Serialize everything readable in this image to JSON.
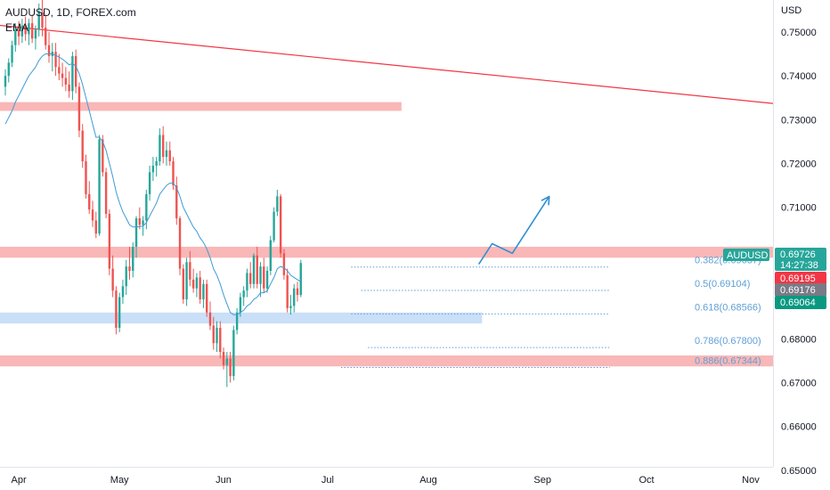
{
  "header": {
    "symbol": "AUDUSD, 1D, FOREX.com",
    "indicator": "EMA"
  },
  "axis": {
    "currency": "USD"
  },
  "price_tags": {
    "symbol": "AUDUSD",
    "last": "0.69726",
    "countdown": "14:27:38",
    "red": "0.69195",
    "gray": "0.69176",
    "green": "0.69064"
  },
  "colors": {
    "bull": "#26a69a",
    "bear": "#ef5350",
    "ema": "#3d9bd6",
    "zone_red": "#f7a5a5",
    "zone_blue": "#b8d4f5",
    "trend": "#f23645",
    "arrow": "#2f8fd3",
    "fib": "#5f9fd6"
  },
  "chart_data": {
    "type": "candlestick",
    "title": "AUDUSD, 1D, FOREX.com",
    "ylabel": "USD",
    "ylim": [
      0.6455,
      0.7573
    ],
    "y_ticks": [
      0.75,
      0.74,
      0.73,
      0.72,
      0.71,
      0.7,
      0.69,
      0.68,
      0.67,
      0.66,
      0.65
    ],
    "y_tick_labels": [
      "0.75000",
      "0.74000",
      "0.73000",
      "0.72000",
      "0.71000",
      "0.70000",
      "0.69000",
      "0.68000",
      "0.67000",
      "0.66000",
      "0.65000"
    ],
    "x_labels": [
      "Apr",
      "May",
      "Jun",
      "Jul",
      "Aug",
      "Sep",
      "Oct",
      "Nov"
    ],
    "x_label_index": [
      4,
      34,
      65,
      96,
      126,
      160,
      191,
      222
    ],
    "candles": [
      [
        0.7375,
        0.7415,
        0.7355,
        0.74
      ],
      [
        0.74,
        0.744,
        0.7385,
        0.743
      ],
      [
        0.743,
        0.748,
        0.742,
        0.747
      ],
      [
        0.747,
        0.752,
        0.7455,
        0.7505
      ],
      [
        0.7505,
        0.7525,
        0.747,
        0.749
      ],
      [
        0.749,
        0.753,
        0.7475,
        0.7515
      ],
      [
        0.7515,
        0.7535,
        0.748,
        0.7495
      ],
      [
        0.7495,
        0.753,
        0.747,
        0.752
      ],
      [
        0.752,
        0.754,
        0.7475,
        0.7485
      ],
      [
        0.7485,
        0.7515,
        0.746,
        0.7505
      ],
      [
        0.7505,
        0.7565,
        0.749,
        0.7545
      ],
      [
        0.7545,
        0.7575,
        0.749,
        0.751
      ],
      [
        0.751,
        0.754,
        0.746,
        0.747
      ],
      [
        0.747,
        0.75,
        0.743,
        0.7445
      ],
      [
        0.7445,
        0.7475,
        0.741,
        0.7455
      ],
      [
        0.7455,
        0.7475,
        0.74,
        0.742
      ],
      [
        0.742,
        0.745,
        0.739,
        0.7405
      ],
      [
        0.7405,
        0.743,
        0.7375,
        0.7395
      ],
      [
        0.7395,
        0.742,
        0.7365,
        0.738
      ],
      [
        0.738,
        0.741,
        0.735,
        0.7365
      ],
      [
        0.7365,
        0.7455,
        0.7345,
        0.7445
      ],
      [
        0.7445,
        0.746,
        0.736,
        0.7375
      ],
      [
        0.7375,
        0.7385,
        0.726,
        0.7275
      ],
      [
        0.7275,
        0.729,
        0.719,
        0.7205
      ],
      [
        0.7205,
        0.722,
        0.712,
        0.713
      ],
      [
        0.713,
        0.716,
        0.7085,
        0.7095
      ],
      [
        0.7095,
        0.7115,
        0.7055,
        0.707
      ],
      [
        0.707,
        0.709,
        0.703,
        0.704
      ],
      [
        0.704,
        0.7265,
        0.7035,
        0.7255
      ],
      [
        0.7255,
        0.7265,
        0.717,
        0.718
      ],
      [
        0.718,
        0.719,
        0.7075,
        0.7085
      ],
      [
        0.7085,
        0.7095,
        0.6945,
        0.696
      ],
      [
        0.696,
        0.699,
        0.6895,
        0.691
      ],
      [
        0.691,
        0.692,
        0.681,
        0.6825
      ],
      [
        0.6825,
        0.6905,
        0.6815,
        0.6895
      ],
      [
        0.6895,
        0.6935,
        0.688,
        0.692
      ],
      [
        0.692,
        0.698,
        0.69,
        0.6965
      ],
      [
        0.6965,
        0.701,
        0.6935,
        0.6955
      ],
      [
        0.6955,
        0.702,
        0.694,
        0.701
      ],
      [
        0.701,
        0.708,
        0.6985,
        0.7075
      ],
      [
        0.7075,
        0.71,
        0.705,
        0.706
      ],
      [
        0.706,
        0.708,
        0.7035,
        0.707
      ],
      [
        0.707,
        0.714,
        0.705,
        0.713
      ],
      [
        0.713,
        0.7195,
        0.7115,
        0.718
      ],
      [
        0.718,
        0.7215,
        0.716,
        0.7195
      ],
      [
        0.7195,
        0.7215,
        0.717,
        0.7205
      ],
      [
        0.7205,
        0.728,
        0.7195,
        0.7265
      ],
      [
        0.7265,
        0.7285,
        0.72,
        0.7215
      ],
      [
        0.7215,
        0.725,
        0.7195,
        0.723
      ],
      [
        0.723,
        0.725,
        0.7195,
        0.7205
      ],
      [
        0.7205,
        0.7215,
        0.714,
        0.715
      ],
      [
        0.715,
        0.717,
        0.706,
        0.7075
      ],
      [
        0.7075,
        0.708,
        0.6945,
        0.696
      ],
      [
        0.696,
        0.697,
        0.688,
        0.689
      ],
      [
        0.689,
        0.6985,
        0.6875,
        0.6975
      ],
      [
        0.6975,
        0.7,
        0.692,
        0.6935
      ],
      [
        0.6935,
        0.696,
        0.6905,
        0.6915
      ],
      [
        0.6915,
        0.695,
        0.6895,
        0.694
      ],
      [
        0.694,
        0.6955,
        0.688,
        0.689
      ],
      [
        0.689,
        0.6935,
        0.687,
        0.6925
      ],
      [
        0.6925,
        0.6935,
        0.685,
        0.686
      ],
      [
        0.686,
        0.6885,
        0.682,
        0.683
      ],
      [
        0.683,
        0.685,
        0.6775,
        0.679
      ],
      [
        0.679,
        0.684,
        0.677,
        0.6825
      ],
      [
        0.6825,
        0.684,
        0.6755,
        0.677
      ],
      [
        0.677,
        0.678,
        0.673,
        0.674
      ],
      [
        0.674,
        0.677,
        0.669,
        0.6755
      ],
      [
        0.6755,
        0.677,
        0.67,
        0.6715
      ],
      [
        0.6715,
        0.683,
        0.6705,
        0.682
      ],
      [
        0.682,
        0.687,
        0.681,
        0.686
      ],
      [
        0.686,
        0.6905,
        0.685,
        0.6895
      ],
      [
        0.6895,
        0.692,
        0.6875,
        0.691
      ],
      [
        0.691,
        0.696,
        0.6895,
        0.695
      ],
      [
        0.695,
        0.6975,
        0.6915,
        0.6925
      ],
      [
        0.6925,
        0.6995,
        0.6915,
        0.699
      ],
      [
        0.699,
        0.701,
        0.6915,
        0.6925
      ],
      [
        0.6925,
        0.6975,
        0.6895,
        0.6965
      ],
      [
        0.6965,
        0.6985,
        0.6905,
        0.6915
      ],
      [
        0.6915,
        0.6965,
        0.6905,
        0.6955
      ],
      [
        0.6955,
        0.7035,
        0.6945,
        0.7025
      ],
      [
        0.7025,
        0.71,
        0.702,
        0.709
      ],
      [
        0.709,
        0.714,
        0.708,
        0.7125
      ],
      [
        0.7125,
        0.713,
        0.6985,
        0.6995
      ],
      [
        0.6995,
        0.7005,
        0.6935,
        0.6945
      ],
      [
        0.6945,
        0.696,
        0.686,
        0.687
      ],
      [
        0.687,
        0.69,
        0.6855,
        0.6875
      ],
      [
        0.6875,
        0.6925,
        0.686,
        0.6915
      ],
      [
        0.6915,
        0.693,
        0.6885,
        0.69
      ],
      [
        0.69,
        0.698,
        0.6895,
        0.6973
      ]
    ],
    "ema": [
      0.729,
      0.7305,
      0.732,
      0.734,
      0.7355,
      0.737,
      0.7385,
      0.74,
      0.741,
      0.742,
      0.7435,
      0.7445,
      0.745,
      0.745,
      0.745,
      0.7447,
      0.7443,
      0.7438,
      0.7432,
      0.7425,
      0.7428,
      0.7422,
      0.7405,
      0.738,
      0.735,
      0.732,
      0.729,
      0.726,
      0.726,
      0.725,
      0.723,
      0.72,
      0.717,
      0.7135,
      0.711,
      0.709,
      0.7075,
      0.706,
      0.7055,
      0.7055,
      0.7056,
      0.7057,
      0.7065,
      0.708,
      0.7095,
      0.711,
      0.713,
      0.714,
      0.715,
      0.7155,
      0.7155,
      0.7145,
      0.7125,
      0.71,
      0.7085,
      0.707,
      0.7055,
      0.7045,
      0.703,
      0.702,
      0.7005,
      0.6985,
      0.696,
      0.6945,
      0.6925,
      0.69,
      0.688,
      0.686,
      0.6855,
      0.6855,
      0.686,
      0.6865,
      0.6875,
      0.688,
      0.689,
      0.6895,
      0.6905,
      0.6905,
      0.691,
      0.6925,
      0.694,
      0.696,
      0.6965,
      0.6962,
      0.6955,
      0.6945,
      0.694,
      0.6935,
      0.693
    ],
    "trendline": {
      "start": [
        0,
        0.7515
      ],
      "end": [
        230,
        0.7337
      ]
    },
    "zones": [
      {
        "kind": "resistance",
        "from": 0,
        "to": 118,
        "low": 0.732,
        "high": 0.734
      },
      {
        "kind": "resistance",
        "from": 0,
        "to": 230,
        "low": 0.6985,
        "high": 0.701
      },
      {
        "kind": "support",
        "from": 0,
        "to": 142,
        "low": 0.6835,
        "high": 0.686
      },
      {
        "kind": "resistance",
        "from": 0,
        "to": 230,
        "low": 0.6737,
        "high": 0.6762
      }
    ],
    "fibonacci": [
      {
        "label": "0.382(0.69637)",
        "level": 0.69637,
        "from": 103,
        "to": 180
      },
      {
        "label": "0.5(0.69104)",
        "level": 0.69104,
        "from": 106,
        "to": 180
      },
      {
        "label": "0.618(0.68566)",
        "level": 0.68566,
        "from": 103,
        "to": 180
      },
      {
        "label": "0.786(0.67800)",
        "level": 0.678,
        "from": 108,
        "to": 180
      },
      {
        "label": "0.886(0.67344)",
        "level": 0.67344,
        "from": 100,
        "to": 180
      }
    ],
    "projection_path": [
      [
        141,
        0.697
      ],
      [
        145,
        0.7017
      ],
      [
        151,
        0.6995
      ],
      [
        162,
        0.7125
      ]
    ]
  }
}
